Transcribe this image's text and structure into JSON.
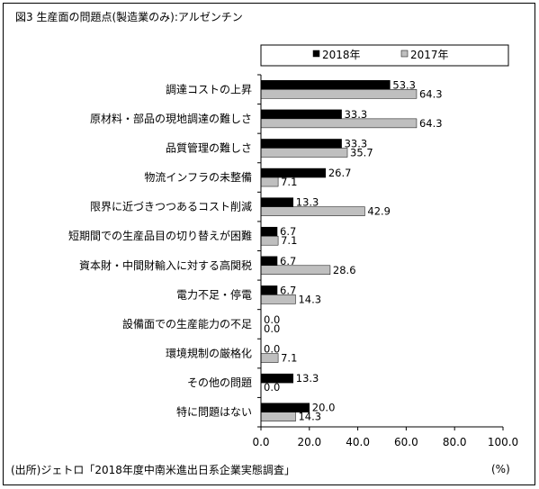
{
  "title": "図3 生産面の問題点(製造業のみ):アルゼンチン",
  "source": "(出所)ジェトロ「2018年度中南米進出日系企業実態調査」",
  "unit": "(%)",
  "colors": {
    "s2018": "#000000",
    "s2017": "#bfbfbf"
  },
  "chart_data": {
    "type": "bar",
    "orientation": "horizontal",
    "categories": [
      "調達コストの上昇",
      "原材料・部品の現地調達の難しさ",
      "品質管理の難しさ",
      "物流インフラの未整備",
      "限界に近づきつつあるコスト削減",
      "短期間での生産品目の切り替えが困難",
      "資本財・中間財輸入に対する高関税",
      "電力不足・停電",
      "設備面での生産能力の不足",
      "環境規制の厳格化",
      "その他の問題",
      "特に問題はない"
    ],
    "series": [
      {
        "name": "2018年",
        "values": [
          53.3,
          33.3,
          33.3,
          26.7,
          13.3,
          6.7,
          6.7,
          6.7,
          0.0,
          0.0,
          13.3,
          20.0
        ]
      },
      {
        "name": "2017年",
        "values": [
          64.3,
          64.3,
          35.7,
          7.1,
          42.9,
          7.1,
          28.6,
          14.3,
          0.0,
          7.1,
          0.0,
          14.3
        ]
      }
    ],
    "xlim": [
      0,
      100
    ],
    "xticks": [
      "0.0",
      "20.0",
      "40.0",
      "60.0",
      "80.0",
      "100.0"
    ],
    "legend_position": "top-right",
    "grid": false
  }
}
